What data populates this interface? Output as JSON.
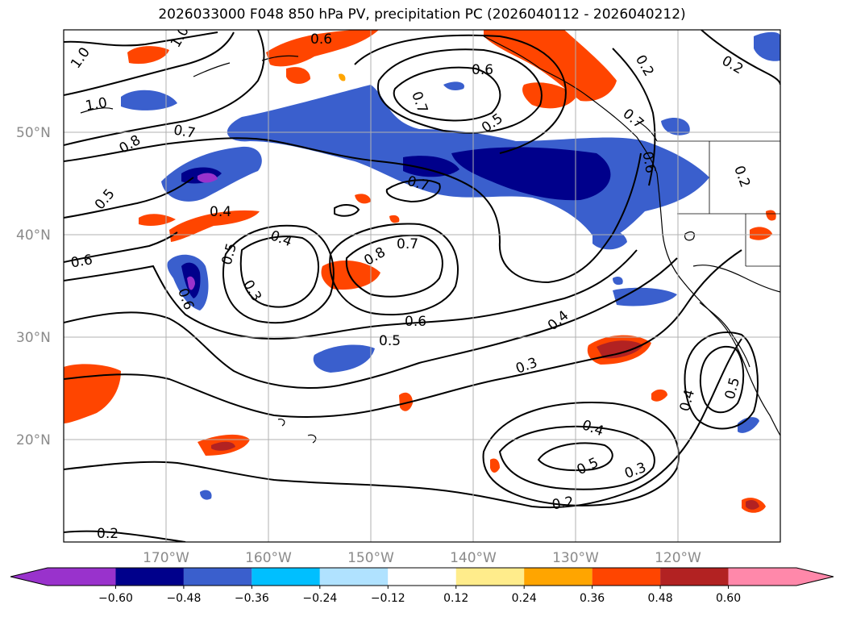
{
  "title": "2026033000 F048 850 hPa PV, precipitation PC (2026040112 - 2026040212)",
  "map": {
    "lat_labels": [
      "50°N",
      "40°N",
      "30°N",
      "20°N"
    ],
    "lon_labels": [
      "170°W",
      "160°W",
      "150°W",
      "140°W",
      "130°W",
      "120°W"
    ],
    "contour_labels": [
      "1.0",
      "1.0",
      "1.0",
      "0.6",
      "0.6",
      "0.2",
      "0.2",
      "0.8",
      "0.7",
      "0.5",
      "0.6",
      "0.4",
      "0.5",
      "0.4",
      "0.3",
      "0.6",
      "0.8",
      "0.7",
      "0.7",
      "0.5",
      "0.6",
      "0.5",
      "0.4",
      "0.3",
      "0.4",
      "0.5",
      "0.5",
      "0.4",
      "0.3",
      "0.2",
      "0.2",
      "0.7",
      "0.7",
      "0.6",
      "0.2"
    ],
    "colors": {
      "coast": "#000000",
      "grid": "#b0b0b0",
      "contour": "#000000"
    }
  },
  "colorbar": {
    "tick_labels": [
      "−0.60",
      "−0.48",
      "−0.36",
      "−0.24",
      "−0.12",
      "0.12",
      "0.24",
      "0.36",
      "0.48",
      "0.60"
    ],
    "colors": [
      "#9932cc",
      "#00008b",
      "#3a5fcd",
      "#00bfff",
      "#b0e2ff",
      "#ffffff",
      "#ffec8b",
      "#ffa500",
      "#ff4500",
      "#b22222",
      "#ff88aa"
    ]
  }
}
